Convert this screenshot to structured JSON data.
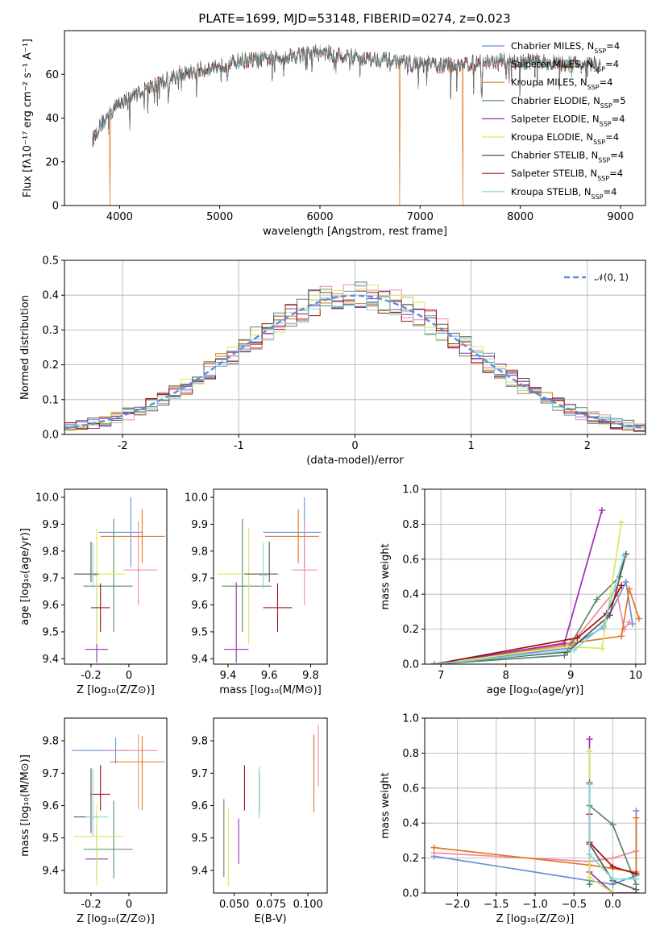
{
  "figure_title": "PLATE=1699, MJD=53148, FIBERID=0274, z=0.023",
  "models": [
    {
      "name": "Chabrier MILES",
      "nssp": "4",
      "color": "#6a8fd8"
    },
    {
      "name": "Salpeter MILES",
      "nssp": "4",
      "color": "#f08aa0"
    },
    {
      "name": "Kroupa MILES",
      "nssp": "4",
      "color": "#e0751f"
    },
    {
      "name": "Chabrier ELODIE",
      "nssp": "5",
      "color": "#5a8a64"
    },
    {
      "name": "Salpeter ELODIE",
      "nssp": "4",
      "color": "#9a2fb0"
    },
    {
      "name": "Kroupa ELODIE",
      "nssp": "4",
      "color": "#d6ea5a"
    },
    {
      "name": "Chabrier STELIB",
      "nssp": "4",
      "color": "#555555"
    },
    {
      "name": "Salpeter STELIB",
      "nssp": "4",
      "color": "#a01010"
    },
    {
      "name": "Kroupa STELIB",
      "nssp": "4",
      "color": "#86d6dc"
    }
  ],
  "chart_data": [
    {
      "type": "line",
      "id": "spectrum",
      "title": "PLATE=1699, MJD=53148, FIBERID=0274, z=0.023",
      "xlabel": "wavelength [Angstrom, rest frame]",
      "ylabel": "Flux [fλ10⁻¹⁷ erg cm⁻² s⁻¹ A⁻¹]",
      "xlim": [
        3450,
        9250
      ],
      "ylim": [
        0,
        80
      ],
      "xticks": [
        4000,
        5000,
        6000,
        7000,
        8000,
        9000
      ],
      "yticks": [
        0,
        20,
        40,
        60
      ],
      "legend_position": "top-right",
      "continuum": [
        [
          3730,
          30
        ],
        [
          3800,
          36
        ],
        [
          3900,
          42
        ],
        [
          4000,
          47
        ],
        [
          4200,
          52
        ],
        [
          4400,
          56
        ],
        [
          4600,
          60
        ],
        [
          4800,
          62
        ],
        [
          5000,
          64
        ],
        [
          5200,
          66
        ],
        [
          5500,
          67
        ],
        [
          5800,
          69
        ],
        [
          6000,
          70
        ],
        [
          6300,
          68
        ],
        [
          6600,
          67
        ],
        [
          6900,
          65
        ],
        [
          7200,
          64
        ],
        [
          7500,
          65
        ],
        [
          7800,
          66
        ],
        [
          8100,
          66
        ],
        [
          8400,
          65
        ],
        [
          8800,
          64
        ]
      ],
      "dropouts": [
        {
          "x": 3905,
          "model": "Kroupa MILES"
        },
        {
          "x": 6795,
          "model": "Kroupa MILES"
        },
        {
          "x": 7425,
          "model": "Kroupa MILES"
        }
      ]
    },
    {
      "type": "step",
      "id": "residuals",
      "xlabel": "(data-model)/error",
      "ylabel": "Normed distribution",
      "xlim": [
        -2.5,
        2.5
      ],
      "ylim": [
        0,
        0.5
      ],
      "xticks": [
        -2,
        -1,
        0,
        1,
        2
      ],
      "yticks": [
        0.0,
        0.1,
        0.2,
        0.3,
        0.4,
        0.5
      ],
      "grid": true,
      "reference": {
        "name": "𝒩(0, 1)",
        "mean": 0,
        "sigma": 1
      },
      "legend_position": "top-right",
      "bin_width": 0.1
    },
    {
      "type": "errorbar",
      "id": "age-vs-Z",
      "xlabel": "Z [log₁₀(Z/Z⊙)]",
      "ylabel": "age  [log₁₀(age/yr)]",
      "xlim": [
        -0.34,
        0.2
      ],
      "ylim": [
        9.38,
        10.03
      ],
      "xticks": [
        -0.2,
        0.0
      ],
      "yticks": [
        9.4,
        9.5,
        9.6,
        9.7,
        9.8,
        9.9,
        10.0
      ],
      "points": [
        {
          "model": "Chabrier MILES",
          "x": 0.01,
          "xerr": [
            0.17,
            0.06
          ],
          "y": 9.87,
          "yerr": [
            0.13,
            0.13
          ]
        },
        {
          "model": "Salpeter MILES",
          "x": 0.05,
          "xerr": [
            0.08,
            0.1
          ],
          "y": 9.73,
          "yerr": [
            0.13,
            0.18
          ]
        },
        {
          "model": "Kroupa MILES",
          "x": 0.07,
          "xerr": [
            0.22,
            0.12
          ],
          "y": 9.855,
          "yerr": [
            0.1,
            0.1
          ]
        },
        {
          "model": "Chabrier ELODIE",
          "x": -0.08,
          "xerr": [
            0.16,
            0.1
          ],
          "y": 9.67,
          "yerr": [
            0.17,
            0.25
          ]
        },
        {
          "model": "Salpeter ELODIE",
          "x": -0.17,
          "xerr": [
            0.06,
            0.06
          ],
          "y": 9.435,
          "yerr": [
            0.05,
            0.25
          ]
        },
        {
          "model": "Kroupa ELODIE",
          "x": -0.17,
          "xerr": [
            0.1,
            0.15
          ],
          "y": 9.715,
          "yerr": [
            0.26,
            0.17
          ]
        },
        {
          "model": "Chabrier STELIB",
          "x": -0.2,
          "xerr": [
            0.09,
            0.04
          ],
          "y": 9.715,
          "yerr": [
            0.03,
            0.12
          ]
        },
        {
          "model": "Salpeter STELIB",
          "x": -0.15,
          "xerr": [
            0.05,
            0.05
          ],
          "y": 9.59,
          "yerr": [
            0.09,
            0.09
          ]
        },
        {
          "model": "Kroupa STELIB",
          "x": -0.19,
          "xerr": [
            0.02,
            0.02
          ],
          "y": 9.71,
          "yerr": [
            0.05,
            0.12
          ]
        }
      ]
    },
    {
      "type": "errorbar",
      "id": "age-vs-mass",
      "xlabel": "mass [log₁₀(M/M⊙)]",
      "ylabel": "",
      "xlim": [
        9.33,
        9.88
      ],
      "ylim": [
        9.38,
        10.03
      ],
      "xticks": [
        9.4,
        9.6,
        9.8
      ],
      "yticks": [
        9.4,
        9.5,
        9.6,
        9.7,
        9.8,
        9.9,
        10.0
      ],
      "points": [
        {
          "model": "Chabrier MILES",
          "x": 9.77,
          "xerr": [
            0.2,
            0.08
          ],
          "y": 9.87,
          "yerr": [
            0.13,
            0.13
          ]
        },
        {
          "model": "Salpeter MILES",
          "x": 9.77,
          "xerr": [
            0.06,
            0.06
          ],
          "y": 9.73,
          "yerr": [
            0.13,
            0.18
          ]
        },
        {
          "model": "Kroupa MILES",
          "x": 9.74,
          "xerr": [
            0.16,
            0.1
          ],
          "y": 9.855,
          "yerr": [
            0.1,
            0.1
          ]
        },
        {
          "model": "Chabrier ELODIE",
          "x": 9.47,
          "xerr": [
            0.1,
            0.14
          ],
          "y": 9.67,
          "yerr": [
            0.17,
            0.25
          ]
        },
        {
          "model": "Salpeter ELODIE",
          "x": 9.44,
          "xerr": [
            0.06,
            0.06
          ],
          "y": 9.435,
          "yerr": [
            0.05,
            0.25
          ]
        },
        {
          "model": "Kroupa ELODIE",
          "x": 9.5,
          "xerr": [
            0.15,
            0.15
          ],
          "y": 9.715,
          "yerr": [
            0.26,
            0.17
          ]
        },
        {
          "model": "Chabrier STELIB",
          "x": 9.6,
          "xerr": [
            0.12,
            0.04
          ],
          "y": 9.715,
          "yerr": [
            0.03,
            0.12
          ]
        },
        {
          "model": "Salpeter STELIB",
          "x": 9.64,
          "xerr": [
            0.07,
            0.07
          ],
          "y": 9.59,
          "yerr": [
            0.09,
            0.09
          ]
        },
        {
          "model": "Kroupa STELIB",
          "x": 9.57,
          "xerr": [
            0.02,
            0.02
          ],
          "y": 9.71,
          "yerr": [
            0.05,
            0.12
          ]
        }
      ]
    },
    {
      "type": "line",
      "id": "massweight-vs-age",
      "xlabel": "age  [log₁₀(age/yr)]",
      "ylabel": "mass weight",
      "xlim": [
        6.75,
        10.15
      ],
      "ylim": [
        0,
        1
      ],
      "xticks": [
        7,
        8,
        9,
        10
      ],
      "yticks": [
        0.0,
        0.2,
        0.4,
        0.6,
        0.8,
        1.0
      ],
      "grid": true,
      "series": [
        {
          "model": "Chabrier MILES",
          "x": [
            6.9,
            8.95,
            9.5,
            9.85,
            9.95
          ],
          "y": [
            0.0,
            0.09,
            0.21,
            0.47,
            0.23
          ]
        },
        {
          "model": "Salpeter MILES",
          "x": [
            6.9,
            9.0,
            9.7,
            9.82,
            9.9
          ],
          "y": [
            0.0,
            0.11,
            0.43,
            0.2,
            0.24
          ]
        },
        {
          "model": "Kroupa MILES",
          "x": [
            6.9,
            9.0,
            9.78,
            9.9,
            10.05
          ],
          "y": [
            0.0,
            0.12,
            0.16,
            0.43,
            0.26
          ]
        },
        {
          "model": "Chabrier ELODIE",
          "x": [
            6.9,
            8.9,
            9.4,
            9.75,
            9.82
          ],
          "y": [
            0.0,
            0.05,
            0.37,
            0.5,
            0.62
          ]
        },
        {
          "model": "Salpeter ELODIE",
          "x": [
            6.9,
            8.9,
            9.48
          ],
          "y": [
            0.0,
            0.12,
            0.88
          ]
        },
        {
          "model": "Kroupa ELODIE",
          "x": [
            6.9,
            8.95,
            9.48,
            9.78
          ],
          "y": [
            0.0,
            0.1,
            0.09,
            0.81
          ]
        },
        {
          "model": "Chabrier STELIB",
          "x": [
            6.9,
            8.95,
            9.6,
            9.85
          ],
          "y": [
            0.0,
            0.07,
            0.28,
            0.63
          ]
        },
        {
          "model": "Salpeter STELIB",
          "x": [
            6.9,
            9.1,
            9.55,
            9.78
          ],
          "y": [
            0.0,
            0.15,
            0.29,
            0.45
          ]
        },
        {
          "model": "Kroupa STELIB",
          "x": [
            6.9,
            9.05,
            9.5,
            9.82
          ],
          "y": [
            0.0,
            0.08,
            0.22,
            0.62
          ]
        }
      ]
    },
    {
      "type": "errorbar",
      "id": "mass-vs-Z",
      "xlabel": "Z [log₁₀(Z/Z⊙)]",
      "ylabel": "mass [log₁₀(M/M⊙)]",
      "xlim": [
        -0.34,
        0.2
      ],
      "ylim": [
        9.33,
        9.87
      ],
      "xticks": [
        -0.2,
        0.0
      ],
      "yticks": [
        9.4,
        9.5,
        9.6,
        9.7,
        9.8
      ],
      "points": [
        {
          "model": "Chabrier MILES",
          "x": -0.07,
          "xerr": [
            0.23,
            0.07
          ],
          "y": 9.77,
          "yerr": [
            0.04,
            0.04
          ]
        },
        {
          "model": "Salpeter MILES",
          "x": 0.05,
          "xerr": [
            0.16,
            0.1
          ],
          "y": 9.77,
          "yerr": [
            0.18,
            0.05
          ]
        },
        {
          "model": "Kroupa MILES",
          "x": 0.07,
          "xerr": [
            0.17,
            0.12
          ],
          "y": 9.735,
          "yerr": [
            0.15,
            0.08
          ]
        },
        {
          "model": "Chabrier ELODIE",
          "x": -0.08,
          "xerr": [
            0.16,
            0.1
          ],
          "y": 9.465,
          "yerr": [
            0.09,
            0.15
          ]
        },
        {
          "model": "Salpeter ELODIE",
          "x": -0.17,
          "xerr": [
            0.06,
            0.06
          ],
          "y": 9.435,
          "yerr": [
            0.06,
            0.1
          ]
        },
        {
          "model": "Kroupa ELODIE",
          "x": -0.17,
          "xerr": [
            0.12,
            0.14
          ],
          "y": 9.505,
          "yerr": [
            0.15,
            0.1
          ]
        },
        {
          "model": "Chabrier STELIB",
          "x": -0.2,
          "xerr": [
            0.09,
            0.04
          ],
          "y": 9.565,
          "yerr": [
            0.05,
            0.15
          ]
        },
        {
          "model": "Salpeter STELIB",
          "x": -0.15,
          "xerr": [
            0.05,
            0.05
          ],
          "y": 9.635,
          "yerr": [
            0.05,
            0.09
          ]
        },
        {
          "model": "Kroupa STELIB",
          "x": -0.19,
          "xerr": [
            0.04,
            0.08
          ],
          "y": 9.565,
          "yerr": [
            0.06,
            0.15
          ]
        }
      ]
    },
    {
      "type": "errorbar",
      "id": "mass-vs-ebv",
      "xlabel": "E(B-V)",
      "ylabel": "",
      "xlim": [
        0.036,
        0.113
      ],
      "ylim": [
        9.33,
        9.87
      ],
      "xticks": [
        0.05,
        0.075,
        0.1
      ],
      "xticklabels": [
        "0.050",
        "0.075",
        "0.100"
      ],
      "yticks": [
        9.4,
        9.5,
        9.6,
        9.7,
        9.8
      ],
      "points": [
        {
          "model": "Chabrier MILES",
          "x": 0.104,
          "y": 9.77,
          "yerr": [
            0.04,
            0.04
          ]
        },
        {
          "model": "Salpeter MILES",
          "x": 0.107,
          "y": 9.77,
          "yerr": [
            0.11,
            0.08
          ]
        },
        {
          "model": "Kroupa MILES",
          "x": 0.104,
          "y": 9.7,
          "yerr": [
            0.12,
            0.12
          ]
        },
        {
          "model": "Chabrier ELODIE",
          "x": 0.043,
          "y": 9.5,
          "yerr": [
            0.12,
            0.12
          ]
        },
        {
          "model": "Salpeter ELODIE",
          "x": 0.053,
          "y": 9.49,
          "yerr": [
            0.07,
            0.07
          ]
        },
        {
          "model": "Kroupa ELODIE",
          "x": 0.046,
          "y": 9.47,
          "yerr": [
            0.12,
            0.12
          ]
        },
        {
          "model": "Chabrier STELIB",
          "x": 0.067,
          "y": 9.64,
          "yerr": [
            0.06,
            0.06
          ]
        },
        {
          "model": "Salpeter STELIB",
          "x": 0.057,
          "y": 9.655,
          "yerr": [
            0.07,
            0.07
          ]
        },
        {
          "model": "Kroupa STELIB",
          "x": 0.067,
          "y": 9.64,
          "yerr": [
            0.08,
            0.08
          ]
        }
      ]
    },
    {
      "type": "line",
      "id": "massweight-vs-Z",
      "xlabel": "Z [log₁₀(Z/Z⊙)]",
      "ylabel": "mass weight",
      "xlim": [
        -2.42,
        0.42
      ],
      "ylim": [
        0,
        1
      ],
      "xticks": [
        -2.0,
        -1.5,
        -1.0,
        -0.5,
        0.0
      ],
      "xticklabels": [
        "−2.0",
        "−1.5",
        "−1.0",
        "−0.5",
        "0.0"
      ],
      "yticks": [
        0.0,
        0.2,
        0.4,
        0.6,
        0.8,
        1.0
      ],
      "grid": true,
      "series": [
        {
          "model": "Chabrier MILES",
          "x": [
            -2.3,
            0.0,
            0.3,
            0.3
          ],
          "y": [
            0.21,
            0.05,
            0.1,
            0.47
          ]
        },
        {
          "model": "Salpeter MILES",
          "x": [
            -2.3,
            -0.3,
            0.0,
            0.3
          ],
          "y": [
            0.23,
            0.18,
            0.2,
            0.24
          ]
        },
        {
          "model": "Kroupa MILES",
          "x": [
            -2.3,
            -0.3,
            0.3,
            0.3
          ],
          "y": [
            0.26,
            0.16,
            0.12,
            0.43
          ]
        },
        {
          "model": "Chabrier ELODIE",
          "x": [
            -0.3,
            -0.3,
            0.0,
            0.3
          ],
          "y": [
            0.05,
            0.5,
            0.39,
            0.05
          ]
        },
        {
          "model": "Salpeter ELODIE",
          "x": [
            -0.3,
            -0.3,
            0.0,
            0.3
          ],
          "y": [
            0.88,
            0.12,
            0.0,
            0.0
          ]
        },
        {
          "model": "Kroupa ELODIE",
          "x": [
            -0.3,
            -0.3,
            0.0
          ],
          "y": [
            0.81,
            0.09,
            0.0
          ]
        },
        {
          "model": "Chabrier STELIB",
          "x": [
            -0.3,
            -0.3,
            0.0,
            0.3
          ],
          "y": [
            0.63,
            0.28,
            0.07,
            0.02
          ]
        },
        {
          "model": "Salpeter STELIB",
          "x": [
            -0.3,
            -0.3,
            0.0,
            0.3
          ],
          "y": [
            0.45,
            0.29,
            0.15,
            0.11
          ]
        },
        {
          "model": "Kroupa STELIB",
          "x": [
            -0.3,
            -0.3,
            0.0,
            0.3
          ],
          "y": [
            0.62,
            0.22,
            0.08,
            0.08
          ]
        }
      ]
    }
  ]
}
